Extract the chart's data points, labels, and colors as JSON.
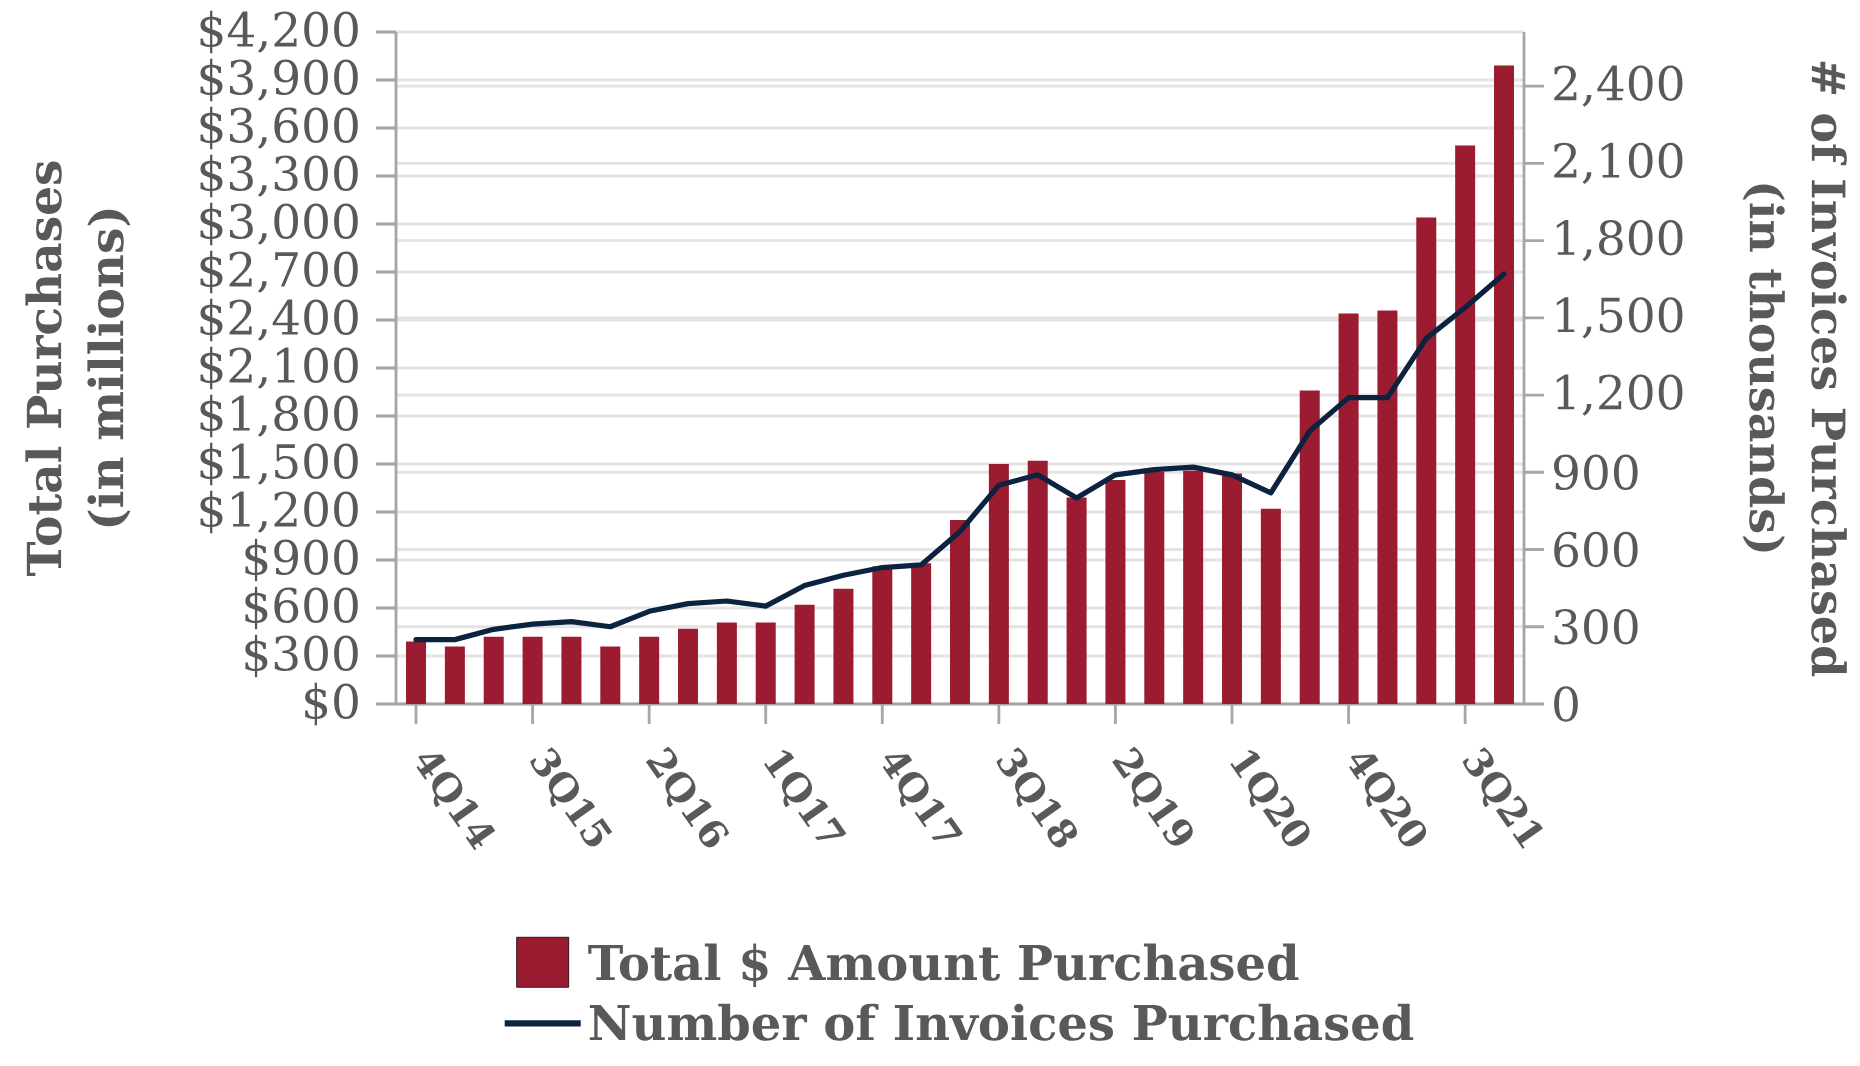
{
  "chart_data": {
    "type": "bar",
    "categories": [
      "4Q14",
      null,
      null,
      "3Q15",
      null,
      null,
      "2Q16",
      null,
      null,
      "1Q17",
      null,
      null,
      "4Q17",
      null,
      null,
      "3Q18",
      null,
      null,
      "2Q19",
      null,
      null,
      "1Q20",
      null,
      null,
      "4Q20",
      null,
      null,
      "3Q21",
      null
    ],
    "series": [
      {
        "name": "Total $ Amount Purchased",
        "color": "#9b1b30",
        "values": [
          390,
          360,
          420,
          420,
          420,
          360,
          420,
          470,
          510,
          510,
          620,
          720,
          860,
          880,
          1150,
          1500,
          1520,
          1290,
          1400,
          1450,
          1460,
          1440,
          1220,
          1960,
          2440,
          2460,
          3040,
          3490,
          3990
        ]
      },
      {
        "name": "Number of Invoices Purchased",
        "type": "line",
        "axis": "y2",
        "color": "#0c2340",
        "values": [
          250,
          250,
          290,
          310,
          320,
          300,
          360,
          390,
          400,
          380,
          460,
          500,
          530,
          540,
          670,
          850,
          890,
          800,
          890,
          910,
          920,
          890,
          820,
          1060,
          1190,
          1190,
          1420,
          1540,
          1670
        ]
      }
    ],
    "ylabel": "Total Purchases (in millions)",
    "y2label": "# of Invoices Purchased (in thousands)",
    "ylim": [
      0,
      4200
    ],
    "yticks": [
      {
        "value": 0,
        "label": "$0"
      },
      {
        "value": 300,
        "label": "$300"
      },
      {
        "value": 600,
        "label": "$600"
      },
      {
        "value": 900,
        "label": "$900"
      },
      {
        "value": 1200,
        "label": "$1,200"
      },
      {
        "value": 1500,
        "label": "$1,500"
      },
      {
        "value": 1800,
        "label": "$1,800"
      },
      {
        "value": 2100,
        "label": "$2,100"
      },
      {
        "value": 2400,
        "label": "$2,400"
      },
      {
        "value": 2700,
        "label": "$2,700"
      },
      {
        "value": 3000,
        "label": "$3,000"
      },
      {
        "value": 3300,
        "label": "$3,300"
      },
      {
        "value": 3600,
        "label": "$3,600"
      },
      {
        "value": 3900,
        "label": "$3,900"
      },
      {
        "value": 4200,
        "label": "$4,200"
      }
    ],
    "y2lim": [
      0,
      2610
    ],
    "y2ticks": [
      0,
      300,
      600,
      900,
      {
        "value": 1200,
        "label": "1,200"
      },
      {
        "value": 1500,
        "label": "1,500"
      },
      {
        "value": 1800,
        "label": "1,800"
      },
      {
        "value": 2100,
        "label": "2,100"
      },
      {
        "value": 2400,
        "label": "2,400"
      }
    ],
    "grid": "y",
    "legend": "bottom"
  }
}
